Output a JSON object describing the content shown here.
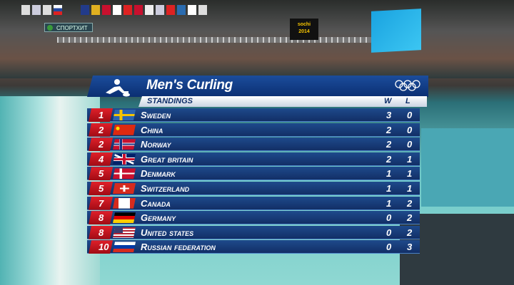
{
  "broadcast": {
    "channel_label": "СПОРТХИТ",
    "scoreboard_logo": "Sochi 2014"
  },
  "graphic": {
    "title": "Men's Curling",
    "subtitle": "Standings",
    "col_w": "W",
    "col_l": "L",
    "icons": {
      "sport": "curling-icon",
      "logo": "olympic-rings-icon"
    },
    "colors": {
      "header": "#1b4d9c",
      "rank": "#d01820",
      "row": "#1e4a8c"
    },
    "rows": [
      {
        "rank": "1",
        "country": "Sweden",
        "w": "3",
        "l": "0",
        "flag": "sweden"
      },
      {
        "rank": "2",
        "country": "China",
        "w": "2",
        "l": "0",
        "flag": "china"
      },
      {
        "rank": "2",
        "country": "Norway",
        "w": "2",
        "l": "0",
        "flag": "norway"
      },
      {
        "rank": "4",
        "country": "Great Britain",
        "w": "2",
        "l": "1",
        "flag": "uk"
      },
      {
        "rank": "5",
        "country": "Denmark",
        "w": "1",
        "l": "1",
        "flag": "denmark"
      },
      {
        "rank": "5",
        "country": "Switzerland",
        "w": "1",
        "l": "1",
        "flag": "switzerland"
      },
      {
        "rank": "7",
        "country": "Canada",
        "w": "1",
        "l": "2",
        "flag": "canada"
      },
      {
        "rank": "8",
        "country": "Germany",
        "w": "0",
        "l": "2",
        "flag": "germany"
      },
      {
        "rank": "8",
        "country": "United States",
        "w": "0",
        "l": "2",
        "flag": "usa"
      },
      {
        "rank": "10",
        "country": "Russian Federation",
        "w": "0",
        "l": "3",
        "flag": "russia"
      }
    ]
  }
}
